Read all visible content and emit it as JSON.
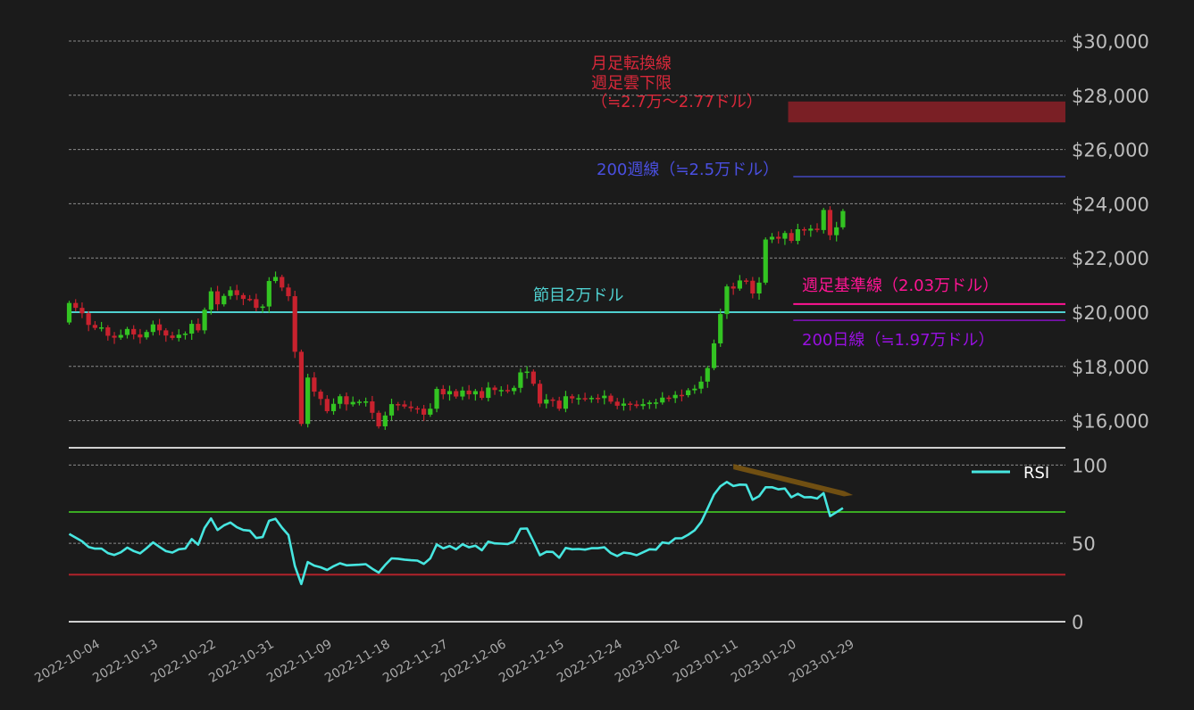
{
  "colors": {
    "background": "#1b1b1b",
    "up": "#33c422",
    "down": "#c8222e",
    "grid": "#8a8a8a",
    "rsi": "#47e6e0",
    "overbought": "#3aaa22",
    "oversold": "#b0222a",
    "level_20000": "#4fcfcf",
    "cloud_zone": "#7a1f25",
    "ma200w": "#4a4fe0",
    "weekly_kijun": "#ff1493",
    "ma200d": "#9810e0",
    "trendline": "#7a5512"
  },
  "chart_data": [
    {
      "type": "candlestick",
      "date_range": [
        "2022-10-04",
        "2023-02-01"
      ],
      "first_open": 19620,
      "close": [
        20340,
        20160,
        19960,
        19530,
        19420,
        19440,
        19130,
        19060,
        19160,
        19380,
        19180,
        19070,
        19270,
        19550,
        19330,
        19140,
        19050,
        19170,
        19210,
        19570,
        19330,
        20090,
        20770,
        20290,
        20600,
        20810,
        20630,
        20490,
        20480,
        20160,
        20210,
        21150,
        21300,
        20910,
        20590,
        18540,
        15880,
        17590,
        17070,
        16800,
        16350,
        16620,
        16900,
        16600,
        16690,
        16700,
        16710,
        16290,
        15790,
        16190,
        16610,
        16600,
        16520,
        16460,
        16440,
        16220,
        16440,
        17170,
        16970,
        17090,
        16890,
        17110,
        16970,
        17090,
        16840,
        17220,
        17130,
        17130,
        17090,
        17210,
        17780,
        17810,
        17360,
        16630,
        16780,
        16740,
        16440,
        16900,
        16820,
        16830,
        16790,
        16840,
        16830,
        16920,
        16700,
        16550,
        16630,
        16600,
        16540,
        16610,
        16670,
        16670,
        16850,
        16830,
        16950,
        16940,
        17120,
        17180,
        17440,
        17940,
        18850,
        19930,
        20950,
        20870,
        21170,
        21160,
        20690,
        21090,
        22680,
        22780,
        22710,
        22920,
        22630,
        23060,
        23010,
        23080,
        23030,
        23770,
        22840,
        23130,
        23730
      ],
      "ylim": [
        15000,
        30500
      ],
      "yticks": [
        16000,
        18000,
        20000,
        22000,
        24000,
        26000,
        28000,
        30000
      ],
      "ytick_labels": [
        "$16,000",
        "$18,000",
        "$20,000",
        "$22,000",
        "$24,000",
        "$26,000",
        "$28,000",
        "$30,000"
      ],
      "grid": true,
      "annotations": {
        "level_20000": {
          "value": 20000,
          "label": "節目2万ドル"
        },
        "cloud_zone": {
          "from": 27000,
          "to": 27770,
          "start": "2023-01-24",
          "lines": [
            "月足転換線",
            "週足雲下限",
            "（≒2.7万～2.77ドル）"
          ]
        },
        "ma200w": {
          "value": 25000,
          "start": "2023-01-25",
          "label": "200週線（≒2.5万ドル）"
        },
        "weekly_kijun": {
          "value": 20300,
          "start": "2023-01-25",
          "label": "週足基準線（2.03万ドル）"
        },
        "ma200d": {
          "value": 19700,
          "start": "2023-01-25",
          "label": "200日線（≒1.97万ドル）"
        }
      }
    },
    {
      "type": "line",
      "series": [
        {
          "name": "RSI",
          "values": [
            56,
            53.6,
            51.3,
            47.7,
            46.6,
            46.7,
            43.8,
            42.6,
            44.3,
            47.3,
            45.1,
            43.6,
            46.9,
            50.6,
            47.7,
            45,
            44.1,
            46.2,
            46.7,
            52.7,
            49.1,
            59.8,
            65.9,
            58.5,
            61.5,
            63.3,
            60.3,
            58.5,
            58.1,
            53.4,
            54,
            64.4,
            65.7,
            60,
            55.3,
            35.5,
            24,
            38.1,
            35.8,
            34.7,
            33,
            35.4,
            37.3,
            36,
            36.2,
            36.4,
            36.7,
            33.8,
            31.3,
            36.2,
            40.4,
            40.2,
            39.6,
            39.2,
            39,
            36.9,
            40.4,
            49.3,
            46.8,
            48.3,
            46.2,
            49.4,
            47.5,
            48.5,
            45.6,
            51.1,
            50,
            49.8,
            49.6,
            51.3,
            59.3,
            59.5,
            51.3,
            42.4,
            44.6,
            44.5,
            40.8,
            47.1,
            46.2,
            46.4,
            46,
            46.9,
            46.9,
            47.5,
            43.8,
            41.9,
            44.1,
            43.6,
            42.4,
            44.3,
            46.2,
            46,
            50.6,
            50,
            53.2,
            53.2,
            55.5,
            58.3,
            63.6,
            72.2,
            81.1,
            86.4,
            89.2,
            86.6,
            87.5,
            87.3,
            77.8,
            80.1,
            85.8,
            85.8,
            84.5,
            85,
            79.4,
            81.6,
            79.4,
            79.5,
            78.6,
            82,
            67.4,
            69.9,
            72.5
          ]
        }
      ],
      "ylim": [
        0,
        111
      ],
      "yticks": [
        0,
        50,
        100
      ],
      "ytick_labels": [
        "0",
        "50",
        "100"
      ],
      "reference_lines": {
        "overbought": 70,
        "oversold": 30
      },
      "trendline": {
        "start": [
          "2023-01-15",
          99
        ],
        "end": [
          "2023-02-02",
          82
        ]
      },
      "legend": {
        "label": "RSI",
        "position": "top-right"
      },
      "xtick_labels": [
        "2022-10-04",
        "2022-10-13",
        "2022-10-22",
        "2022-10-31",
        "2022-11-09",
        "2022-11-18",
        "2022-11-27",
        "2022-12-06",
        "2022-12-15",
        "2022-12-24",
        "2023-01-02",
        "2023-01-11",
        "2023-01-20",
        "2023-01-29"
      ]
    }
  ]
}
